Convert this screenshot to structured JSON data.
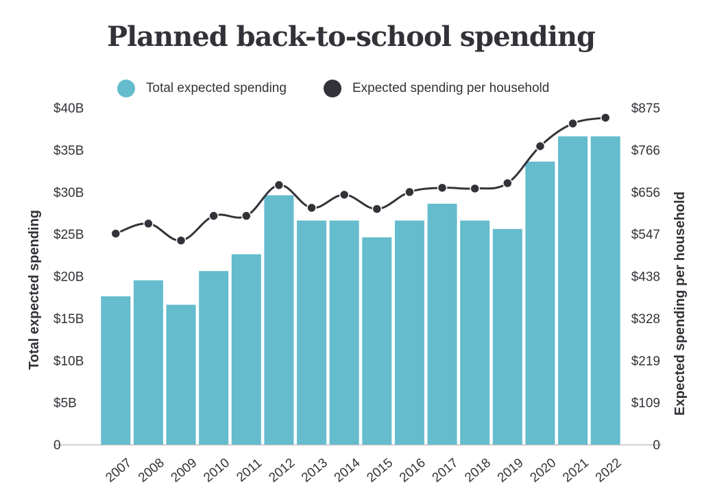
{
  "chart_data": {
    "type": "bar",
    "title": "Planned back-to-school spending",
    "categories": [
      "2007",
      "2008",
      "2009",
      "2010",
      "2011",
      "2012",
      "2013",
      "2014",
      "2015",
      "2016",
      "2017",
      "2018",
      "2019",
      "2020",
      "2021",
      "2022"
    ],
    "series": [
      {
        "name": "Total expected spending",
        "type": "bar",
        "axis": "left",
        "values": [
          17.6,
          19.5,
          16.6,
          20.6,
          22.6,
          29.6,
          26.6,
          26.6,
          24.6,
          26.6,
          28.6,
          26.6,
          25.6,
          33.6,
          36.6,
          36.6
        ]
      },
      {
        "name": "Expected spending per household",
        "type": "line",
        "axis": "right",
        "values": [
          548,
          574,
          530,
          594,
          594,
          674,
          615,
          649,
          612,
          656,
          667,
          665,
          679,
          775,
          834,
          849
        ]
      }
    ],
    "y_left": {
      "label": "Total expected spending",
      "ticks": [
        "0",
        "$5B",
        "$10B",
        "$15B",
        "$20B",
        "$25B",
        "$30B",
        "$35B",
        "$40B"
      ],
      "range": [
        0,
        40
      ]
    },
    "y_right": {
      "label": "Expected spending per household",
      "ticks": [
        "0",
        "$109",
        "$219",
        "$328",
        "$438",
        "$547",
        "$656",
        "$766",
        "$875"
      ],
      "range": [
        0,
        875
      ]
    },
    "grid": false,
    "legend_position": "top-center",
    "colors": {
      "bar": "#64bccd",
      "line": "#333238",
      "axis": "#bfbfbf",
      "text": "#333238"
    }
  }
}
